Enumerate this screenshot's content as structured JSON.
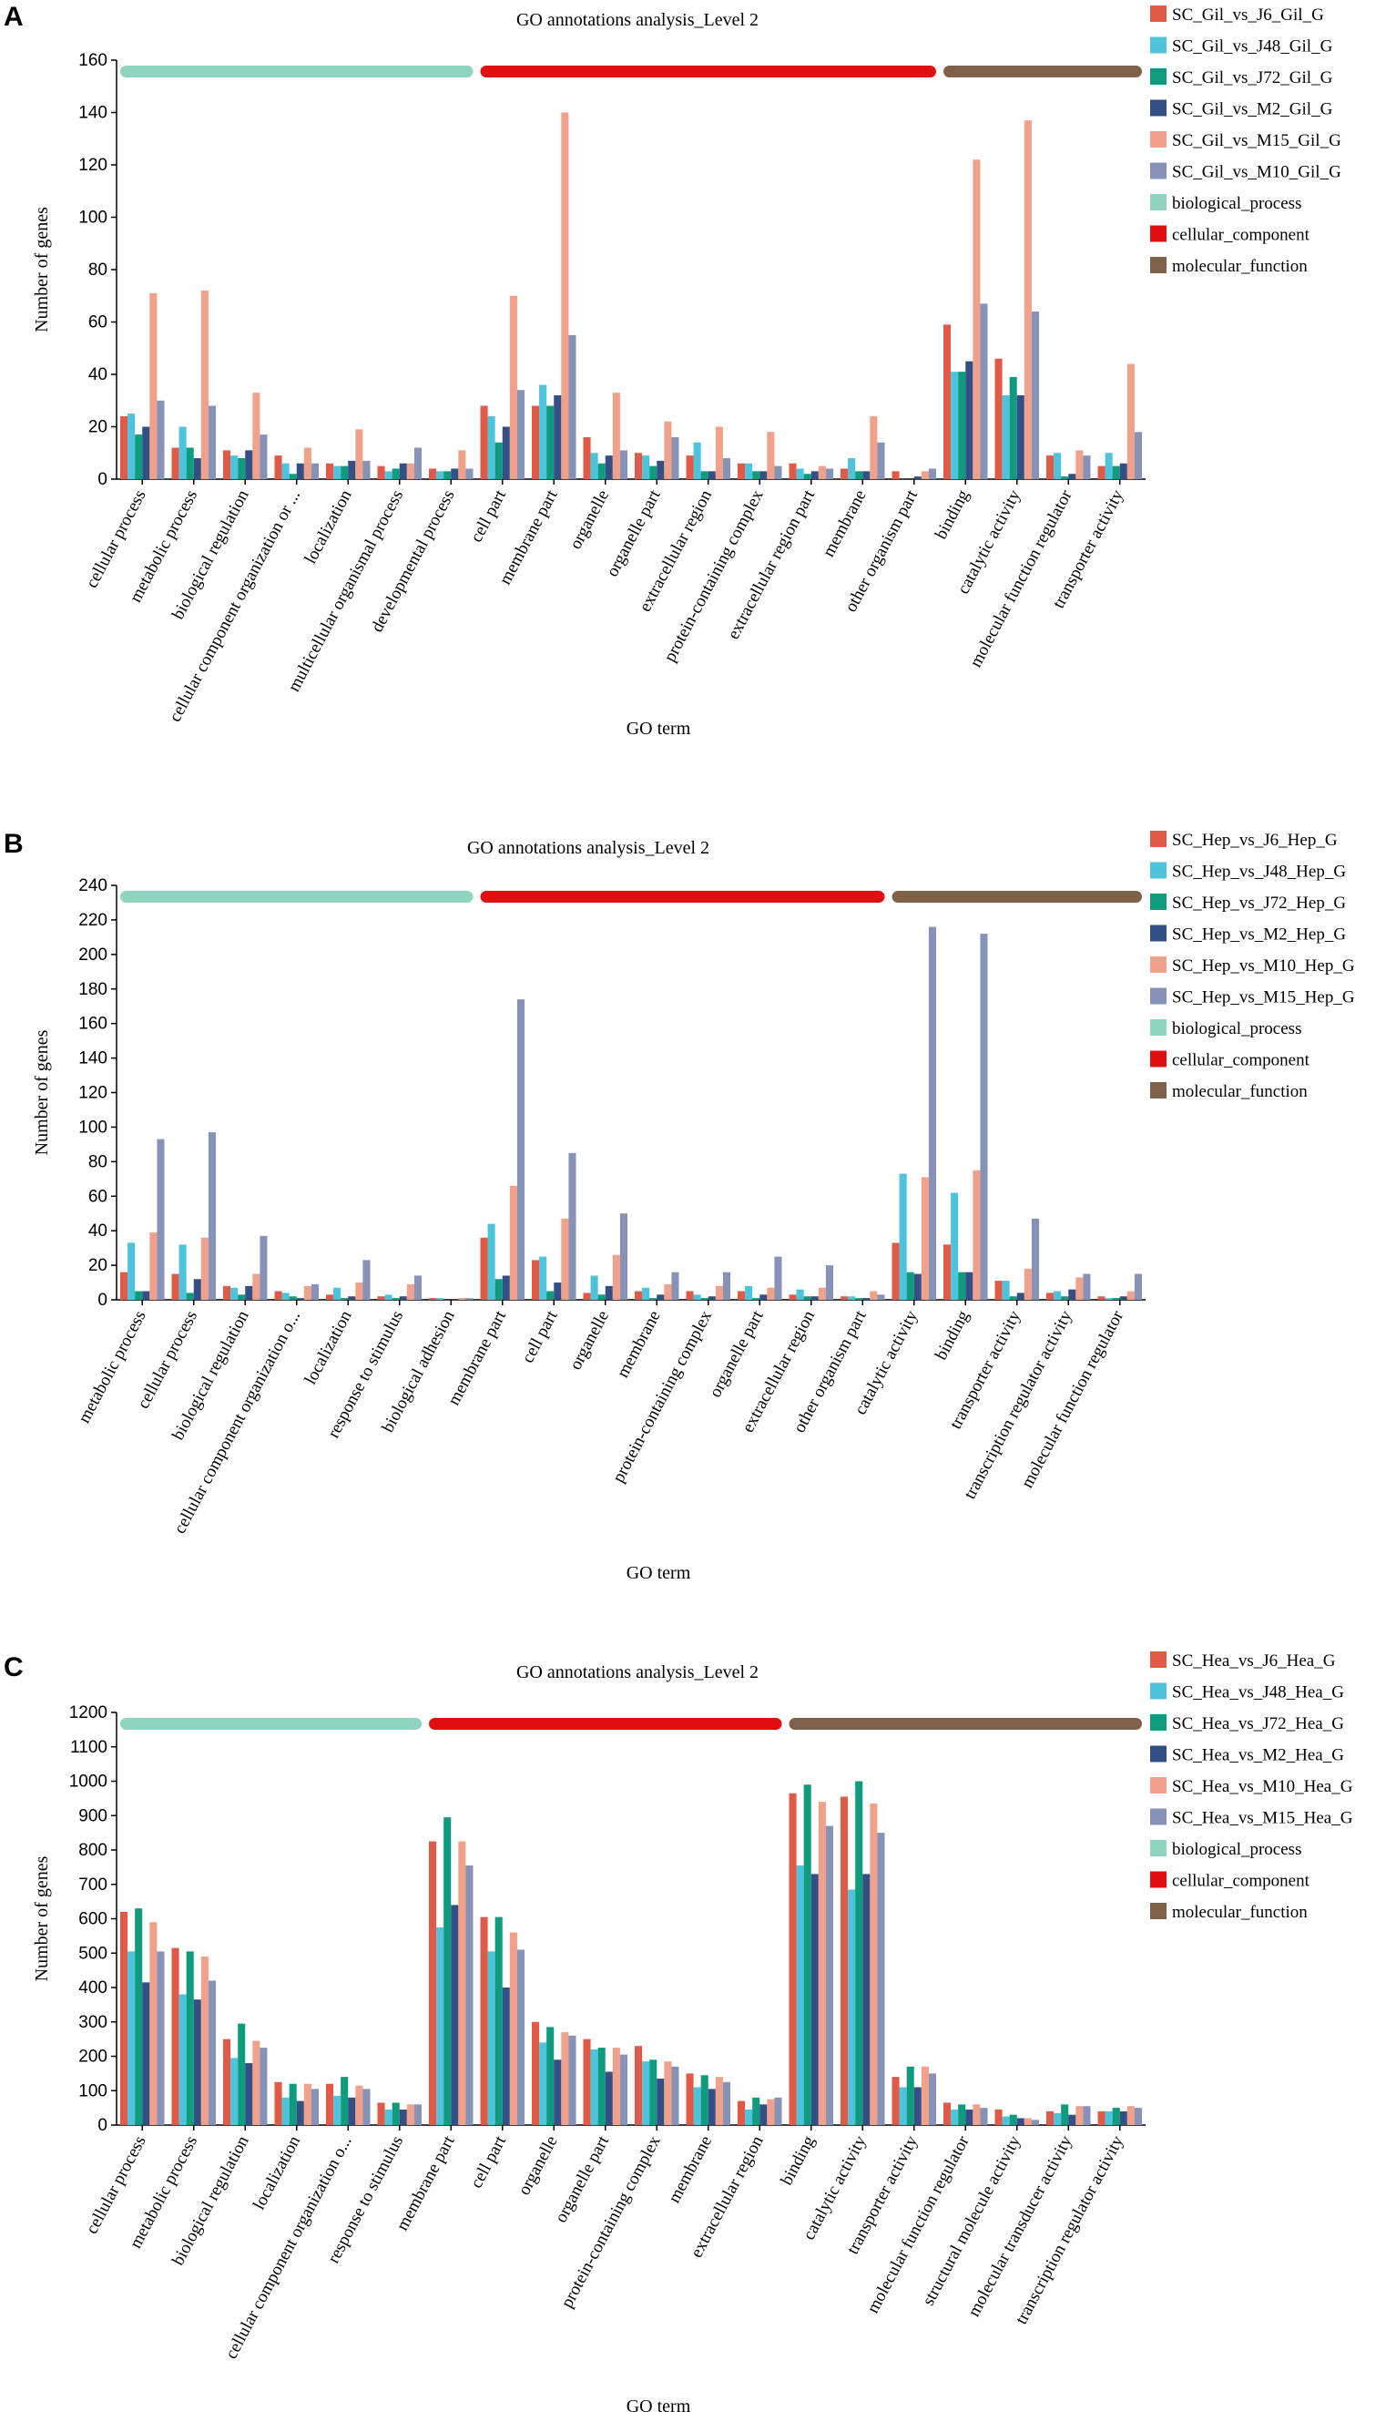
{
  "chart_data": [
    {
      "panel_label": "A",
      "type": "bar",
      "title": "GO annotations analysis_Level 2",
      "xlabel": "GO term",
      "ylabel": "Number of genes",
      "ylim": [
        0,
        160
      ],
      "yticks": [
        0,
        20,
        40,
        60,
        80,
        100,
        120,
        140,
        160
      ],
      "categories": [
        "cellular process",
        "metabolic process",
        "biological regulation",
        "cellular component organization or ...",
        "localization",
        "multicellular organismal process",
        "developmental process",
        "cell part",
        "membrane part",
        "organelle",
        "organelle part",
        "extracellular region",
        "protein-containing complex",
        "extracellular region part",
        "membrane",
        "other organism part",
        "binding",
        "catalytic activity",
        "molecular function regulator",
        "transporter activity"
      ],
      "groups": [
        {
          "name": "biological_process",
          "color": "#8fd3c1",
          "categories": 7
        },
        {
          "name": "cellular_component",
          "color": "#e01010",
          "categories": 9
        },
        {
          "name": "molecular_function",
          "color": "#7f6149",
          "categories": 4
        }
      ],
      "series": [
        {
          "name": "SC_Gil_vs_J6_Gil_G",
          "color": "#e05a47",
          "values": [
            24,
            12,
            11,
            9,
            6,
            5,
            4,
            28,
            28,
            16,
            10,
            9,
            6,
            6,
            4,
            3,
            59,
            46,
            9,
            5
          ]
        },
        {
          "name": "SC_Gil_vs_J48_Gil_G",
          "color": "#4ec3dc",
          "values": [
            25,
            20,
            9,
            6,
            5,
            3,
            3,
            24,
            36,
            10,
            9,
            14,
            6,
            4,
            8,
            0,
            41,
            32,
            10,
            10
          ]
        },
        {
          "name": "SC_Gil_vs_J72_Gil_G",
          "color": "#0e9b7e",
          "values": [
            17,
            12,
            8,
            2,
            5,
            4,
            3,
            14,
            28,
            6,
            5,
            3,
            3,
            2,
            3,
            0,
            41,
            39,
            1,
            5
          ]
        },
        {
          "name": "SC_Gil_vs_M2_Gil_G",
          "color": "#344e86",
          "values": [
            20,
            8,
            11,
            6,
            7,
            6,
            4,
            20,
            32,
            9,
            7,
            3,
            3,
            3,
            3,
            1,
            45,
            32,
            2,
            6
          ]
        },
        {
          "name": "SC_Gil_vs_M15_Gil_G",
          "color": "#f1a18a",
          "values": [
            71,
            72,
            33,
            12,
            19,
            6,
            11,
            70,
            140,
            33,
            22,
            20,
            18,
            5,
            24,
            3,
            122,
            137,
            11,
            44
          ]
        },
        {
          "name": "SC_Gil_vs_M10_Gil_G",
          "color": "#8792b8",
          "values": [
            30,
            28,
            17,
            6,
            7,
            12,
            4,
            34,
            55,
            11,
            16,
            8,
            5,
            4,
            14,
            4,
            67,
            64,
            9,
            18
          ]
        }
      ]
    },
    {
      "panel_label": "B",
      "type": "bar",
      "title": "GO annotations analysis_Level 2",
      "xlabel": "GO term",
      "ylabel": "Number of genes",
      "ylim": [
        0,
        240
      ],
      "yticks": [
        0,
        20,
        40,
        60,
        80,
        100,
        120,
        140,
        160,
        180,
        200,
        220,
        240
      ],
      "categories": [
        "metabolic process",
        "cellular process",
        "biological regulation",
        "cellular component organization o...",
        "localization",
        "response to stimulus",
        "biological adhesion",
        "membrane part",
        "cell part",
        "organelle",
        "membrane",
        "protein-containing complex",
        "organelle part",
        "extracellular region",
        "other organism part",
        "catalytic activity",
        "binding",
        "transporter activity",
        "transcription regulator activity",
        "molecular function regulator"
      ],
      "groups": [
        {
          "name": "biological_process",
          "color": "#8fd3c1",
          "categories": 7
        },
        {
          "name": "cellular_component",
          "color": "#e01010",
          "categories": 8
        },
        {
          "name": "molecular_function",
          "color": "#7f6149",
          "categories": 5
        }
      ],
      "series": [
        {
          "name": "SC_Hep_vs_J6_Hep_G",
          "color": "#e05a47",
          "values": [
            16,
            15,
            8,
            5,
            3,
            2,
            1,
            36,
            23,
            4,
            5,
            5,
            5,
            3,
            2,
            33,
            32,
            11,
            4,
            2
          ]
        },
        {
          "name": "SC_Hep_vs_J48_Hep_G",
          "color": "#4ec3dc",
          "values": [
            33,
            32,
            7,
            4,
            7,
            3,
            1,
            44,
            25,
            14,
            7,
            3,
            8,
            6,
            2,
            73,
            62,
            11,
            5,
            1
          ]
        },
        {
          "name": "SC_Hep_vs_J72_Hep_G",
          "color": "#0e9b7e",
          "values": [
            5,
            4,
            3,
            2,
            1,
            1,
            0,
            12,
            5,
            3,
            1,
            1,
            1,
            2,
            1,
            16,
            16,
            2,
            2,
            1
          ]
        },
        {
          "name": "SC_Hep_vs_M2_Hep_G",
          "color": "#344e86",
          "values": [
            5,
            12,
            8,
            1,
            2,
            2,
            0,
            14,
            10,
            8,
            3,
            2,
            3,
            2,
            1,
            15,
            16,
            4,
            6,
            2
          ]
        },
        {
          "name": "SC_Hep_vs_M10_Hep_G",
          "color": "#f1a18a",
          "values": [
            39,
            36,
            15,
            8,
            10,
            9,
            1,
            66,
            47,
            26,
            9,
            8,
            7,
            7,
            5,
            71,
            75,
            18,
            13,
            5
          ]
        },
        {
          "name": "SC_Hep_vs_M15_Hep_G",
          "color": "#8792b8",
          "values": [
            93,
            97,
            37,
            9,
            23,
            14,
            1,
            174,
            85,
            50,
            16,
            16,
            25,
            20,
            3,
            216,
            212,
            47,
            15,
            15
          ]
        }
      ]
    },
    {
      "panel_label": "C",
      "type": "bar",
      "title": "GO annotations analysis_Level 2",
      "xlabel": "GO term",
      "ylabel": "Number of genes",
      "ylim": [
        0,
        1200
      ],
      "yticks": [
        0,
        100,
        200,
        300,
        400,
        500,
        600,
        700,
        800,
        900,
        1000,
        1100,
        1200
      ],
      "categories": [
        "cellular process",
        "metabolic process",
        "biological regulation",
        "localization",
        "cellular component organization o...",
        "response to stimulus",
        "membrane part",
        "cell part",
        "organelle",
        "organelle part",
        "protein-containing complex",
        "membrane",
        "extracellular region",
        "binding",
        "catalytic activity",
        "transporter activity",
        "molecular function regulator",
        "structural molecule activity",
        "molecular transducer activity",
        "transcription regulator activity"
      ],
      "groups": [
        {
          "name": "biological_process",
          "color": "#8fd3c1",
          "categories": 6
        },
        {
          "name": "cellular_component",
          "color": "#e01010",
          "categories": 7
        },
        {
          "name": "molecular_function",
          "color": "#7f6149",
          "categories": 7
        }
      ],
      "series": [
        {
          "name": "SC_Hea_vs_J6_Hea_G",
          "color": "#e05a47",
          "values": [
            620,
            515,
            250,
            125,
            120,
            65,
            825,
            605,
            300,
            250,
            230,
            150,
            70,
            965,
            955,
            140,
            65,
            45,
            40,
            40
          ]
        },
        {
          "name": "SC_Hea_vs_J48_Hea_G",
          "color": "#4ec3dc",
          "values": [
            505,
            380,
            195,
            80,
            85,
            45,
            575,
            505,
            240,
            220,
            185,
            110,
            45,
            755,
            685,
            110,
            45,
            25,
            35,
            40
          ]
        },
        {
          "name": "SC_Hea_vs_J72_Hea_G",
          "color": "#0e9b7e",
          "values": [
            630,
            505,
            295,
            120,
            140,
            65,
            895,
            605,
            285,
            225,
            190,
            145,
            80,
            990,
            1000,
            170,
            60,
            30,
            60,
            50
          ]
        },
        {
          "name": "SC_Hea_vs_M2_Hea_G",
          "color": "#344e86",
          "values": [
            415,
            365,
            180,
            70,
            80,
            45,
            640,
            400,
            190,
            155,
            135,
            105,
            60,
            730,
            730,
            110,
            45,
            20,
            30,
            40
          ]
        },
        {
          "name": "SC_Hea_vs_M10_Hea_G",
          "color": "#f1a18a",
          "values": [
            590,
            490,
            245,
            120,
            115,
            60,
            825,
            560,
            270,
            225,
            185,
            140,
            75,
            940,
            935,
            170,
            60,
            20,
            55,
            55
          ]
        },
        {
          "name": "SC_Hea_vs_M15_Hea_G",
          "color": "#8792b8",
          "values": [
            505,
            420,
            225,
            105,
            105,
            60,
            755,
            510,
            260,
            205,
            170,
            125,
            80,
            870,
            850,
            150,
            50,
            15,
            55,
            50
          ]
        }
      ]
    }
  ]
}
